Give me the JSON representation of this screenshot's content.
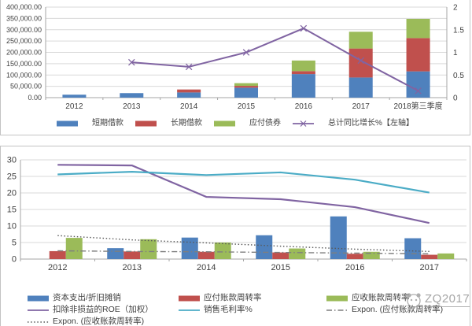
{
  "watermark": {
    "text": "ZQ2017"
  },
  "chart_data": [
    {
      "id": "debt-structure",
      "type": "bar",
      "subtype": "stacked-bar-with-line-dual-axis",
      "grid": true,
      "legend_position": "bottom",
      "categories": [
        "2012",
        "2013",
        "2014",
        "2015",
        "2016",
        "2017",
        "2018第三季度"
      ],
      "left_axis": {
        "min": 0,
        "max": 400000,
        "step": 50000,
        "tick_labels": [
          "400,000.00",
          "350,000.00",
          "300,000.00",
          "250,000.00",
          "200,000.00",
          "150,000.00",
          "100,000.00",
          "50,000.00",
          "0.00"
        ]
      },
      "right_axis": {
        "min": 0,
        "max": 2,
        "step": 0.5,
        "tick_labels": [
          "2",
          "1.5",
          "1",
          "0.5",
          "0"
        ]
      },
      "series": [
        {
          "name": "短期借款",
          "kind": "bar",
          "color": "#4f81bd",
          "values": [
            13000,
            20000,
            23000,
            44000,
            104000,
            89000,
            116000
          ]
        },
        {
          "name": "长期借款",
          "kind": "bar",
          "color": "#c0504d",
          "values": [
            0,
            0,
            13000,
            8000,
            13000,
            128000,
            147000
          ]
        },
        {
          "name": "应付债券",
          "kind": "bar",
          "color": "#9bbb59",
          "values": [
            0,
            0,
            0,
            12000,
            47000,
            74000,
            85000
          ]
        },
        {
          "name": "总计同比增长%【左轴】",
          "kind": "line",
          "axis": "right",
          "marker": "x",
          "color": "#8064a2",
          "values": [
            null,
            0.78,
            0.68,
            1.0,
            1.53,
            0.82,
            0.15
          ]
        }
      ],
      "legend_order": [
        0,
        1,
        2,
        3
      ]
    },
    {
      "id": "operating-ratios",
      "type": "bar",
      "subtype": "clustered-bar-with-lines",
      "grid": true,
      "legend_position": "bottom",
      "categories": [
        "2012",
        "2013",
        "2014",
        "2015",
        "2016",
        "2017"
      ],
      "left_axis": {
        "min": 0,
        "max": 30,
        "step": 5,
        "tick_labels": [
          "30",
          "25",
          "20",
          "15",
          "10",
          "5",
          "0"
        ]
      },
      "series": [
        {
          "name": "资本支出/折旧摊销",
          "kind": "bar",
          "color": "#4f81bd",
          "values": [
            0,
            3.3,
            6.5,
            7.2,
            12.9,
            6.3
          ]
        },
        {
          "name": "应付账款周转率",
          "kind": "bar",
          "color": "#c0504d",
          "values": [
            2.4,
            2.3,
            2.2,
            2.0,
            1.6,
            1.3
          ]
        },
        {
          "name": "应收账款周转率",
          "kind": "bar",
          "color": "#9bbb59",
          "values": [
            6.4,
            6.0,
            5.0,
            3.2,
            2.2,
            1.7
          ]
        },
        {
          "name": "扣除非损益的ROE（加权）",
          "kind": "line",
          "color": "#8064a2",
          "values": [
            28.5,
            28.3,
            18.8,
            18.1,
            15.7,
            10.9
          ]
        },
        {
          "name": "销售毛利率%",
          "kind": "line",
          "color": "#4bacc6",
          "values": [
            25.6,
            26.4,
            25.4,
            26.2,
            24.0,
            20.1
          ]
        },
        {
          "name": "Expon. (应付账款周转率)",
          "kind": "trend",
          "dash": "dashdot",
          "color": "#7f7f7f",
          "values": [
            2.5,
            2.3,
            2.2,
            2.0,
            1.8,
            1.6
          ]
        },
        {
          "name": "Expon. (应收账款周转率)",
          "kind": "trend",
          "dash": "dotted",
          "color": "#595959",
          "values": [
            7.1,
            5.8,
            4.9,
            3.9,
            3.0,
            2.3
          ]
        }
      ],
      "legend_order": [
        0,
        1,
        2,
        3,
        4,
        5,
        6
      ]
    }
  ]
}
